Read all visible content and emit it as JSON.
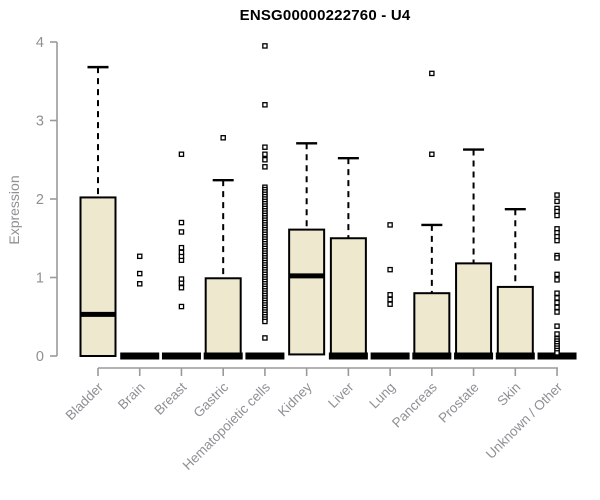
{
  "chart_data": {
    "type": "boxplot",
    "title": "ENSG00000222760 - U4",
    "ylabel": "Expression",
    "xlabel": "",
    "ylim": [
      0,
      4
    ],
    "yticks": [
      0,
      1,
      2,
      3,
      4
    ],
    "grid": false,
    "legend": null,
    "colors": {
      "box_fill": "#EDE8CE",
      "box_border": "#000000",
      "axis": "#9a9a9a",
      "label_text": "#8e9094",
      "title_text": "#000000",
      "outlier_fill": "#ffffff"
    },
    "categories": [
      "Bladder",
      "Brain",
      "Breast",
      "Gastric",
      "Hematopoietic cells",
      "Kidney",
      "Liver",
      "Lung",
      "Pancreas",
      "Prostate",
      "Skin",
      "Unknown / Other"
    ],
    "series": [
      {
        "category": "Bladder",
        "q1": 0,
        "median": 0.53,
        "q3": 2.02,
        "whisker_low": 0,
        "whisker_high": 3.68,
        "outliers": []
      },
      {
        "category": "Brain",
        "q1": 0,
        "median": 0,
        "q3": 0,
        "whisker_low": 0,
        "whisker_high": 0,
        "outliers": [
          0.92,
          1.05,
          1.27
        ]
      },
      {
        "category": "Breast",
        "q1": 0,
        "median": 0,
        "q3": 0,
        "whisker_low": 0,
        "whisker_high": 0,
        "outliers": [
          0.63,
          0.87,
          0.93,
          0.98,
          1.22,
          1.27,
          1.32,
          1.38,
          1.58,
          1.7,
          2.57
        ]
      },
      {
        "category": "Gastric",
        "q1": 0,
        "median": 0,
        "q3": 0.99,
        "whisker_low": 0,
        "whisker_high": 2.24,
        "outliers": [
          2.78
        ]
      },
      {
        "category": "Hematopoietic cells",
        "q1": 0,
        "median": 0,
        "q3": 0,
        "whisker_low": 0,
        "whisker_high": 0,
        "outliers": [
          3.95,
          3.2,
          2.66,
          2.57,
          2.5,
          2.41,
          2.15,
          2.12,
          2.09,
          2.06,
          2.03,
          2.0,
          1.97,
          1.94,
          1.91,
          1.88,
          1.85,
          1.82,
          1.79,
          1.76,
          1.73,
          1.7,
          1.67,
          1.64,
          1.61,
          1.58,
          1.55,
          1.52,
          1.49,
          1.46,
          1.43,
          1.4,
          1.37,
          1.34,
          1.31,
          1.28,
          1.25,
          1.22,
          1.19,
          1.16,
          1.13,
          1.1,
          1.07,
          1.04,
          1.01,
          0.98,
          0.95,
          0.92,
          0.89,
          0.86,
          0.83,
          0.8,
          0.77,
          0.74,
          0.71,
          0.68,
          0.65,
          0.62,
          0.59,
          0.56,
          0.53,
          0.5,
          0.47,
          0.44,
          0.23
        ]
      },
      {
        "category": "Kidney",
        "q1": 0.02,
        "median": 1.02,
        "q3": 1.61,
        "whisker_low": 0.02,
        "whisker_high": 2.71,
        "outliers": []
      },
      {
        "category": "Liver",
        "q1": 0,
        "median": 0,
        "q3": 1.5,
        "whisker_low": 0,
        "whisker_high": 2.52,
        "outliers": []
      },
      {
        "category": "Lung",
        "q1": 0,
        "median": 0,
        "q3": 0,
        "whisker_low": 0,
        "whisker_high": 0,
        "outliers": [
          0.66,
          0.72,
          0.78,
          1.1,
          1.67
        ]
      },
      {
        "category": "Pancreas",
        "q1": 0,
        "median": 0,
        "q3": 0.8,
        "whisker_low": 0,
        "whisker_high": 1.67,
        "outliers": [
          2.57,
          3.6
        ]
      },
      {
        "category": "Prostate",
        "q1": 0,
        "median": 0,
        "q3": 1.18,
        "whisker_low": 0,
        "whisker_high": 2.63,
        "outliers": []
      },
      {
        "category": "Skin",
        "q1": 0,
        "median": 0,
        "q3": 0.88,
        "whisker_low": 0,
        "whisker_high": 1.87,
        "outliers": []
      },
      {
        "category": "Unknown / Other",
        "q1": 0,
        "median": 0,
        "q3": 0,
        "whisker_low": 0,
        "whisker_high": 0,
        "outliers": [
          2.05,
          1.97,
          1.88,
          1.84,
          1.79,
          1.62,
          1.57,
          1.52,
          1.47,
          1.28,
          1.25,
          1.04,
          0.97,
          0.8,
          0.74,
          0.68,
          0.62,
          0.56,
          0.38,
          0.28,
          0.22,
          0.19,
          0.16,
          0.13,
          0.1,
          0.07,
          0.04
        ]
      }
    ]
  }
}
